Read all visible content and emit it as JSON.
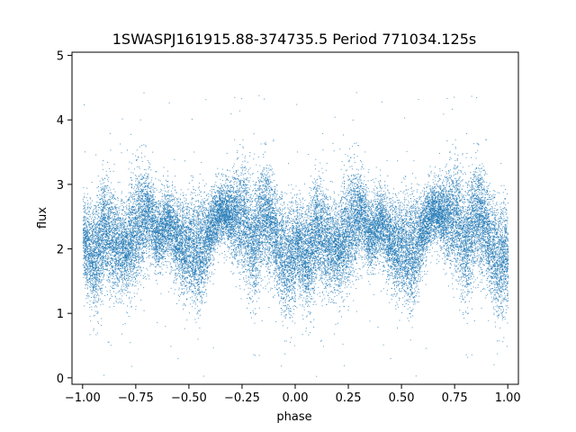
{
  "chart_data": {
    "type": "scatter",
    "title": "1SWASPJ161915.88-374735.5 Period 771034.125s",
    "xlabel": "phase",
    "ylabel": "flux",
    "xlim": [
      -1.05,
      1.05
    ],
    "ylim": [
      -0.1,
      5.05
    ],
    "x_ticks": [
      -1.0,
      -0.75,
      -0.5,
      -0.25,
      0.0,
      0.25,
      0.5,
      0.75,
      1.0
    ],
    "x_tick_labels": [
      "−1.00",
      "−0.75",
      "−0.50",
      "−0.25",
      "0.00",
      "0.25",
      "0.50",
      "0.75",
      "1.00"
    ],
    "y_ticks": [
      0,
      1,
      2,
      3,
      4,
      5
    ],
    "y_tick_labels": [
      "0",
      "1",
      "2",
      "3",
      "4",
      "5"
    ],
    "grid": false,
    "marker_color": "#1f77b4",
    "point_profile": {
      "phase": [
        -1.0,
        -0.95,
        -0.9,
        -0.85,
        -0.8,
        -0.75,
        -0.7,
        -0.65,
        -0.6,
        -0.55,
        -0.5,
        -0.45,
        -0.4,
        -0.35,
        -0.3,
        -0.25,
        -0.2,
        -0.15,
        -0.1,
        -0.05,
        0.0
      ],
      "median_flux": [
        2.2,
        1.8,
        2.3,
        2.1,
        2.0,
        2.3,
        2.6,
        2.2,
        2.4,
        2.1,
        2.0,
        1.9,
        2.3,
        2.6,
        2.5,
        2.5,
        2.0,
        2.6,
        2.3,
        1.8,
        1.9
      ],
      "spread": [
        0.5,
        0.7,
        0.8,
        0.7,
        0.6,
        0.8,
        0.6,
        0.5,
        0.5,
        0.6,
        0.7,
        0.8,
        0.5,
        0.4,
        0.5,
        0.8,
        0.8,
        0.7,
        0.7,
        0.8,
        0.7
      ]
    },
    "point_count": 15000,
    "symmetric": true
  }
}
